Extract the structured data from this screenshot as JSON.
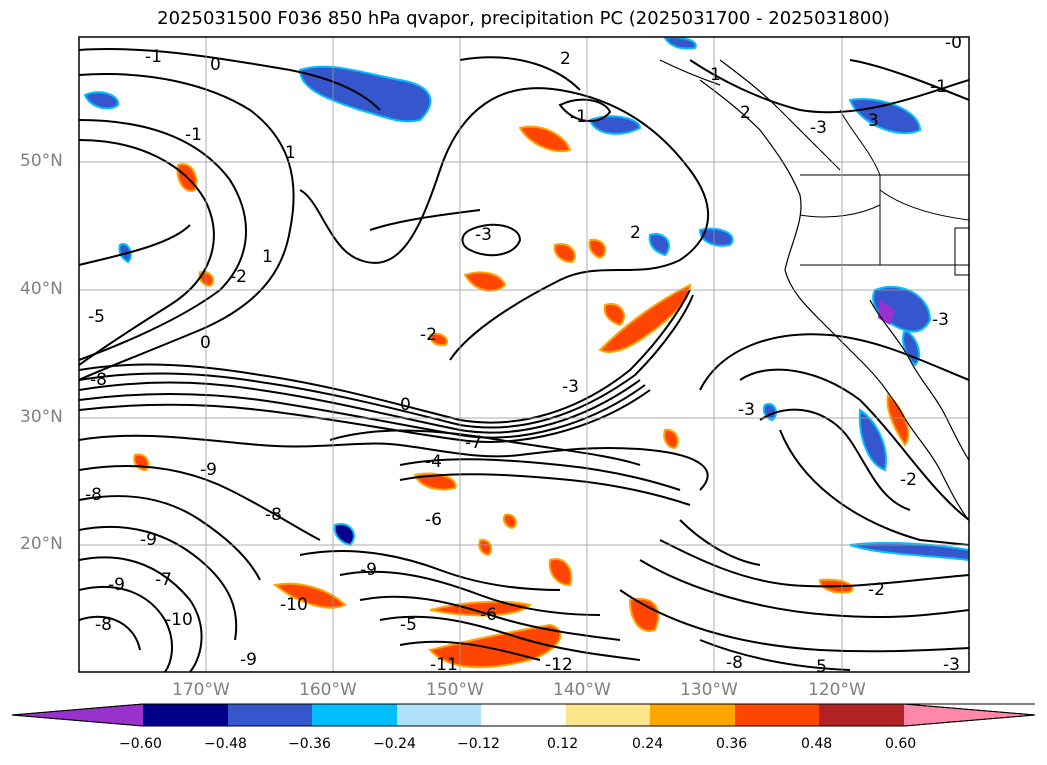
{
  "title": "2025031500 F036 850 hPa qvapor, precipitation PC (2025031700 - 2025031800)",
  "map": {
    "lat_labels": [
      "50°N",
      "40°N",
      "30°N",
      "20°N"
    ],
    "lon_labels": [
      "170°W",
      "160°W",
      "150°W",
      "140°W",
      "130°W",
      "120°W"
    ],
    "contour_labels": [
      "-1",
      "0",
      "2",
      "1",
      "-3",
      "2",
      "3",
      "-1",
      "2",
      "-1",
      "1",
      "-2",
      "1",
      "-0",
      "-3",
      "-2",
      "-1",
      "0",
      "0",
      "-3",
      "-3",
      "-4",
      "-5",
      "-8",
      "-8",
      "-9",
      "-7",
      "-9",
      "-8",
      "-6",
      "-7",
      "-9",
      "-10",
      "-10",
      "-9",
      "-5",
      "-11",
      "-12",
      "-8",
      "-5",
      "-3",
      "-2",
      "-3",
      "-2",
      "-6",
      "-9",
      "-8"
    ]
  },
  "colorbar": {
    "ticks": [
      "−0.60",
      "−0.48",
      "−0.36",
      "−0.24",
      "−0.12",
      "0.12",
      "0.24",
      "0.36",
      "0.48",
      "0.60"
    ],
    "colors": [
      "#9932cc",
      "#00008b",
      "#3656cd",
      "#00bfff",
      "#aee2f8",
      "#ffffff",
      "#fde68a",
      "#ffa500",
      "#ff4500",
      "#b22222",
      "#ff88aa"
    ]
  }
}
